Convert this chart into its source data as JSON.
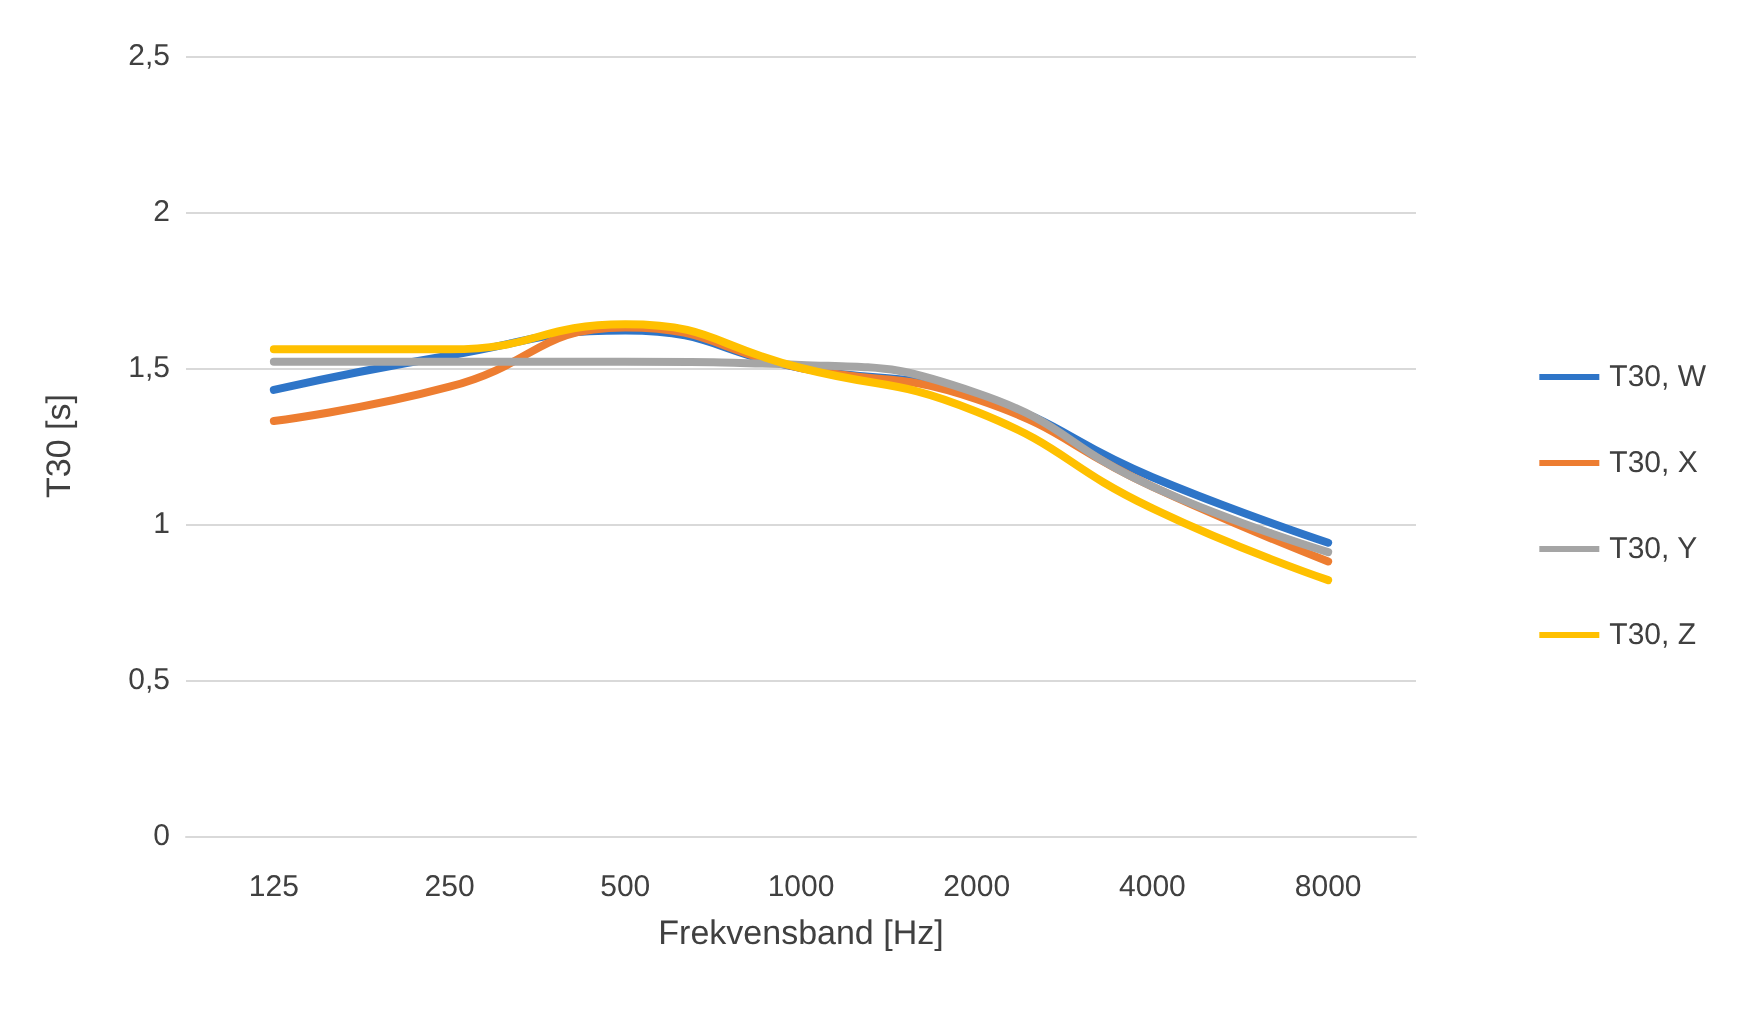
{
  "chart_data": {
    "type": "line",
    "xlabel": "Frekvensband [Hz]",
    "ylabel": "T30 [s]",
    "categories": [
      "125",
      "250",
      "500",
      "1000",
      "2000",
      "4000",
      "8000"
    ],
    "series": [
      {
        "name": "T30, W",
        "color": "#2e75c8",
        "values": [
          1.43,
          1.54,
          1.62,
          1.5,
          1.41,
          1.15,
          0.94
        ]
      },
      {
        "name": "T30, X",
        "color": "#ed7d31",
        "values": [
          1.33,
          1.44,
          1.63,
          1.5,
          1.4,
          1.12,
          0.88
        ]
      },
      {
        "name": "T30, Y",
        "color": "#a5a5a5",
        "values": [
          1.52,
          1.52,
          1.52,
          1.51,
          1.42,
          1.12,
          0.91
        ]
      },
      {
        "name": "T30, Z",
        "color": "#ffc000",
        "values": [
          1.56,
          1.56,
          1.64,
          1.5,
          1.36,
          1.05,
          0.82
        ]
      }
    ],
    "ylim": [
      0,
      2.5
    ],
    "yticks": [
      0,
      {
        "value": 0.5,
        "label": "0,5"
      },
      1,
      {
        "value": 1.5,
        "label": "1,5"
      },
      2,
      {
        "value": 2.5,
        "label": "2,5"
      }
    ],
    "grid": "y",
    "legend": "right",
    "marker": "none",
    "line_style": "solid"
  }
}
